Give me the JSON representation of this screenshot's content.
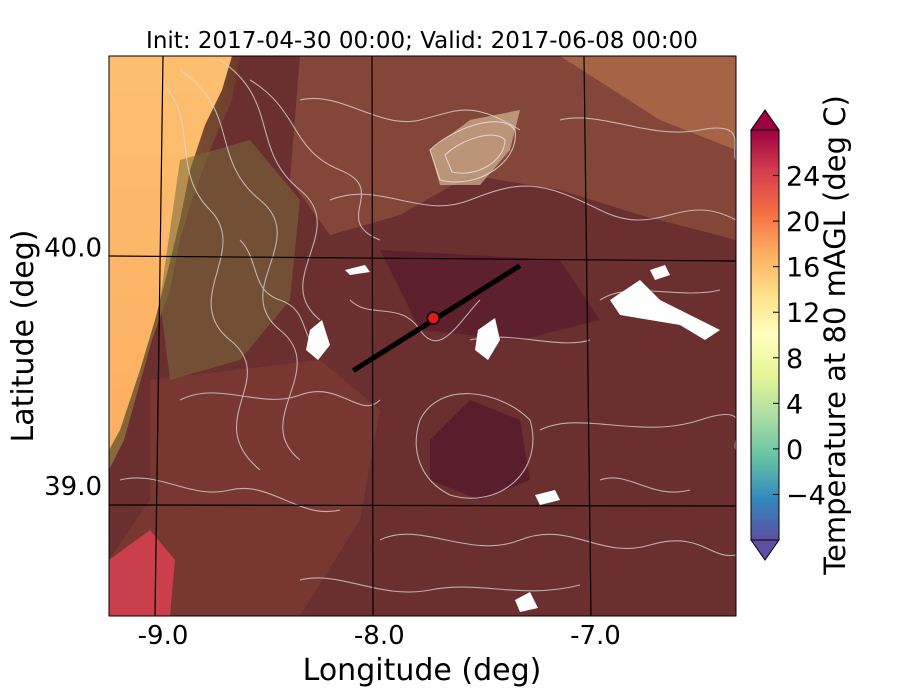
{
  "title": "Init: 2017-04-30 00:00; Valid: 2017-06-08 00:00",
  "map": {
    "xlabel": "Longitude (deg)",
    "ylabel": "Latitude (deg)",
    "xlim": [
      -9.25,
      -6.35
    ],
    "ylim": [
      38.45,
      40.8
    ],
    "x_ticks": [
      {
        "value": -9.0,
        "label": "-9.0"
      },
      {
        "value": -8.0,
        "label": "-8.0"
      },
      {
        "value": -7.0,
        "label": "-7.0"
      }
    ],
    "y_ticks": [
      {
        "value": 40.0,
        "label": "40.0"
      },
      {
        "value": 39.0,
        "label": "39.0"
      }
    ],
    "grid": true,
    "transect": {
      "start": [
        -8.12,
        39.48
      ],
      "end": [
        -7.35,
        39.92
      ],
      "color": "#000000"
    },
    "marker": {
      "lon": -7.75,
      "lat": 39.7,
      "color": "#e31a1c"
    },
    "contour_color": "#d9d9d9"
  },
  "colorbar": {
    "label": "Temperature at 80 mAGL (deg C)",
    "min": -8,
    "max": 28,
    "extend": "both",
    "ticks": [
      {
        "value": -4,
        "label": "−4"
      },
      {
        "value": 0,
        "label": "0"
      },
      {
        "value": 4,
        "label": "4"
      },
      {
        "value": 8,
        "label": "8"
      },
      {
        "value": 12,
        "label": "12"
      },
      {
        "value": 16,
        "label": "16"
      },
      {
        "value": 20,
        "label": "20"
      },
      {
        "value": 24,
        "label": "24"
      }
    ],
    "colormap": "Spectral_r",
    "colors": [
      "#5e4fa2",
      "#3288bd",
      "#66c2a5",
      "#abdda4",
      "#e6f598",
      "#ffffbf",
      "#fee08b",
      "#fdae61",
      "#f46d43",
      "#d53e4f",
      "#9e0142"
    ]
  }
}
